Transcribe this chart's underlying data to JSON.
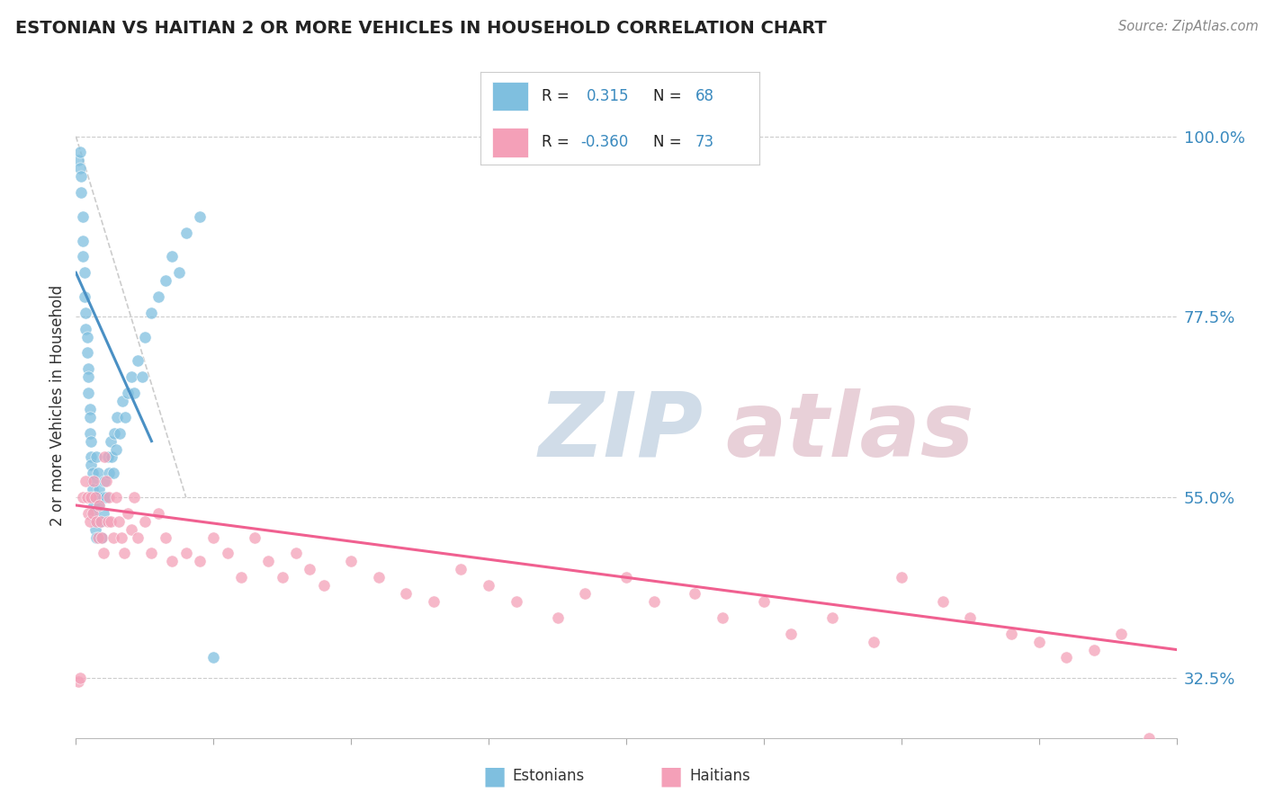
{
  "title": "ESTONIAN VS HAITIAN 2 OR MORE VEHICLES IN HOUSEHOLD CORRELATION CHART",
  "source_text": "Source: ZipAtlas.com",
  "ylabel": "2 or more Vehicles in Household",
  "xlim": [
    0.0,
    80.0
  ],
  "ylim": [
    25.0,
    108.0
  ],
  "yticks": [
    32.5,
    55.0,
    77.5,
    100.0
  ],
  "ytick_labels": [
    "32.5%",
    "55.0%",
    "77.5%",
    "100.0%"
  ],
  "color_estonian": "#7fbfdf",
  "color_haitian": "#f4a0b8",
  "color_estonian_line": "#4a90c4",
  "color_haitian_line": "#f06090",
  "color_ref_line": "#cccccc",
  "watermark_color": "#d0dce8",
  "watermark_color2": "#e8d0d8",
  "background_color": "#ffffff",
  "estonian_x": [
    0.2,
    0.3,
    0.3,
    0.4,
    0.4,
    0.5,
    0.5,
    0.5,
    0.6,
    0.6,
    0.7,
    0.7,
    0.8,
    0.8,
    0.9,
    0.9,
    0.9,
    1.0,
    1.0,
    1.0,
    1.1,
    1.1,
    1.1,
    1.2,
    1.2,
    1.2,
    1.3,
    1.3,
    1.3,
    1.4,
    1.4,
    1.5,
    1.5,
    1.6,
    1.6,
    1.7,
    1.7,
    1.8,
    1.9,
    2.0,
    2.0,
    2.1,
    2.2,
    2.3,
    2.4,
    2.5,
    2.6,
    2.7,
    2.8,
    2.9,
    3.0,
    3.2,
    3.4,
    3.6,
    3.8,
    4.0,
    4.2,
    4.5,
    4.8,
    5.0,
    5.5,
    6.0,
    6.5,
    7.0,
    7.5,
    8.0,
    9.0,
    10.0
  ],
  "estonian_y": [
    97.0,
    98.0,
    96.0,
    95.0,
    93.0,
    90.0,
    87.0,
    85.0,
    83.0,
    80.0,
    78.0,
    76.0,
    75.0,
    73.0,
    71.0,
    70.0,
    68.0,
    66.0,
    65.0,
    63.0,
    62.0,
    60.0,
    59.0,
    58.0,
    57.0,
    56.0,
    55.0,
    54.0,
    53.0,
    52.0,
    51.0,
    50.0,
    60.0,
    55.0,
    58.0,
    56.0,
    54.0,
    52.0,
    50.0,
    55.0,
    53.0,
    57.0,
    55.0,
    60.0,
    58.0,
    62.0,
    60.0,
    58.0,
    63.0,
    61.0,
    65.0,
    63.0,
    67.0,
    65.0,
    68.0,
    70.0,
    68.0,
    72.0,
    70.0,
    75.0,
    78.0,
    80.0,
    82.0,
    85.0,
    83.0,
    88.0,
    90.0,
    35.0
  ],
  "haitian_x": [
    0.2,
    0.3,
    0.5,
    0.7,
    0.8,
    0.9,
    1.0,
    1.1,
    1.2,
    1.3,
    1.4,
    1.5,
    1.6,
    1.7,
    1.8,
    1.9,
    2.0,
    2.1,
    2.2,
    2.3,
    2.4,
    2.5,
    2.7,
    2.9,
    3.1,
    3.3,
    3.5,
    3.8,
    4.0,
    4.2,
    4.5,
    5.0,
    5.5,
    6.0,
    6.5,
    7.0,
    8.0,
    9.0,
    10.0,
    11.0,
    12.0,
    13.0,
    14.0,
    15.0,
    16.0,
    17.0,
    18.0,
    20.0,
    22.0,
    24.0,
    26.0,
    28.0,
    30.0,
    32.0,
    35.0,
    37.0,
    40.0,
    42.0,
    45.0,
    47.0,
    50.0,
    52.0,
    55.0,
    58.0,
    60.0,
    63.0,
    65.0,
    68.0,
    70.0,
    72.0,
    74.0,
    76.0,
    78.0
  ],
  "haitian_y": [
    32.0,
    32.5,
    55.0,
    57.0,
    55.0,
    53.0,
    52.0,
    55.0,
    53.0,
    57.0,
    55.0,
    52.0,
    50.0,
    54.0,
    52.0,
    50.0,
    48.0,
    60.0,
    57.0,
    52.0,
    55.0,
    52.0,
    50.0,
    55.0,
    52.0,
    50.0,
    48.0,
    53.0,
    51.0,
    55.0,
    50.0,
    52.0,
    48.0,
    53.0,
    50.0,
    47.0,
    48.0,
    47.0,
    50.0,
    48.0,
    45.0,
    50.0,
    47.0,
    45.0,
    48.0,
    46.0,
    44.0,
    47.0,
    45.0,
    43.0,
    42.0,
    46.0,
    44.0,
    42.0,
    40.0,
    43.0,
    45.0,
    42.0,
    43.0,
    40.0,
    42.0,
    38.0,
    40.0,
    37.0,
    45.0,
    42.0,
    40.0,
    38.0,
    37.0,
    35.0,
    36.0,
    38.0,
    25.0
  ],
  "est_line_x": [
    0.0,
    5.5
  ],
  "est_line_y": [
    83.0,
    62.0
  ],
  "hat_line_x": [
    0.0,
    80.0
  ],
  "hat_line_y": [
    54.0,
    36.0
  ],
  "ref_line_x": [
    0.0,
    8.0
  ],
  "ref_line_y": [
    100.0,
    55.0
  ]
}
